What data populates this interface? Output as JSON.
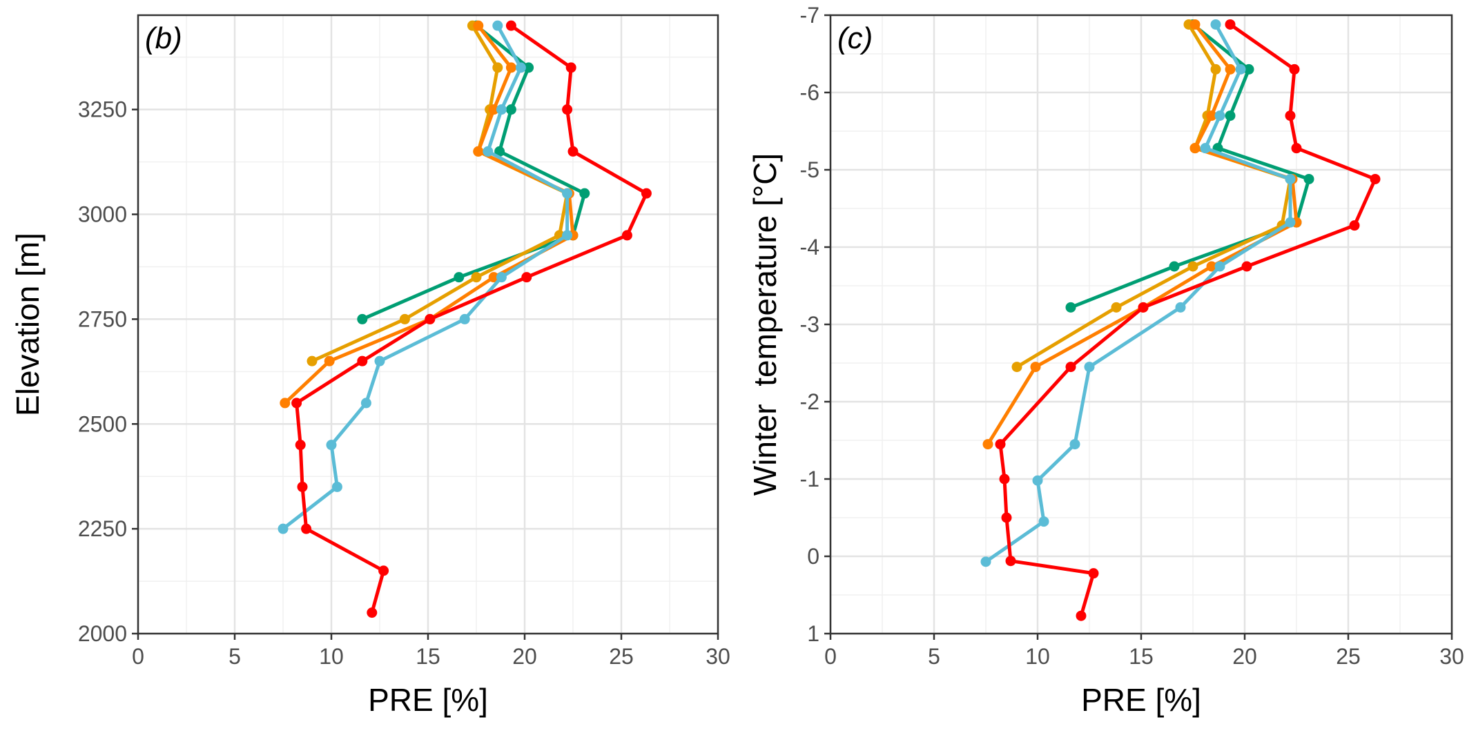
{
  "chart_data": [
    {
      "type": "line",
      "panel_label": "(b)",
      "xlabel": "PRE [%]",
      "ylabel": "Elevation [m]",
      "xlim": [
        0,
        30
      ],
      "ylim": [
        2000,
        3475
      ],
      "x_ticks": [
        "0",
        "5",
        "10",
        "15",
        "20",
        "25",
        "30"
      ],
      "y_ticks": [
        "2000",
        "2250",
        "2500",
        "2750",
        "3000",
        "3250"
      ],
      "grid": true,
      "legend": "none",
      "series": [
        {
          "color": "#009E73",
          "points": [
            [
              17.5,
              3450
            ],
            [
              20.2,
              3350
            ],
            [
              19.3,
              3250
            ],
            [
              18.7,
              3150
            ],
            [
              23.1,
              3050
            ],
            [
              22.5,
              2950
            ],
            [
              16.6,
              2850
            ],
            [
              11.6,
              2750
            ]
          ]
        },
        {
          "color": "#E69F00",
          "points": [
            [
              17.3,
              3450
            ],
            [
              18.6,
              3350
            ],
            [
              18.2,
              3250
            ],
            [
              17.6,
              3150
            ],
            [
              22.2,
              3050
            ],
            [
              21.8,
              2950
            ],
            [
              17.5,
              2850
            ],
            [
              13.8,
              2750
            ],
            [
              9.0,
              2650
            ]
          ]
        },
        {
          "color": "#FF7F00",
          "points": [
            [
              17.6,
              3450
            ],
            [
              19.3,
              3350
            ],
            [
              18.4,
              3250
            ],
            [
              17.6,
              3150
            ],
            [
              22.3,
              3050
            ],
            [
              22.5,
              2950
            ],
            [
              18.4,
              2850
            ],
            [
              15.1,
              2750
            ],
            [
              9.9,
              2650
            ],
            [
              7.6,
              2550
            ]
          ]
        },
        {
          "color": "#5BBCD6",
          "points": [
            [
              18.6,
              3450
            ],
            [
              19.8,
              3350
            ],
            [
              18.8,
              3250
            ],
            [
              18.1,
              3150
            ],
            [
              22.2,
              3050
            ],
            [
              22.2,
              2950
            ],
            [
              18.8,
              2850
            ],
            [
              16.9,
              2750
            ],
            [
              12.5,
              2650
            ],
            [
              11.8,
              2550
            ],
            [
              10.0,
              2450
            ],
            [
              10.3,
              2350
            ],
            [
              7.5,
              2250
            ]
          ]
        },
        {
          "color": "#FF0000",
          "points": [
            [
              19.3,
              3450
            ],
            [
              22.4,
              3350
            ],
            [
              22.2,
              3250
            ],
            [
              22.5,
              3150
            ],
            [
              26.3,
              3050
            ],
            [
              25.3,
              2950
            ],
            [
              20.1,
              2850
            ],
            [
              15.1,
              2750
            ],
            [
              11.6,
              2650
            ],
            [
              8.2,
              2550
            ],
            [
              8.4,
              2450
            ],
            [
              8.5,
              2350
            ],
            [
              8.7,
              2250
            ],
            [
              12.7,
              2150
            ],
            [
              12.1,
              2050
            ]
          ]
        }
      ]
    },
    {
      "type": "line",
      "panel_label": "(c)",
      "xlabel": "PRE [%]",
      "ylabel": "Winter  temperature [°C]",
      "xlim": [
        0,
        30
      ],
      "ylim": [
        1,
        -7
      ],
      "x_ticks": [
        "0",
        "5",
        "10",
        "15",
        "20",
        "25",
        "30"
      ],
      "y_ticks": [
        "1",
        "0",
        "-1",
        "-2",
        "-3",
        "-4",
        "-5",
        "-6",
        "-7"
      ],
      "grid": true,
      "legend": "none",
      "series": [
        {
          "color": "#009E73",
          "points": [
            [
              17.5,
              -6.88
            ],
            [
              20.2,
              -6.3
            ],
            [
              19.3,
              -5.7
            ],
            [
              18.7,
              -5.28
            ],
            [
              23.1,
              -4.88
            ],
            [
              22.5,
              -4.32
            ],
            [
              16.6,
              -3.75
            ],
            [
              11.6,
              -3.22
            ]
          ]
        },
        {
          "color": "#E69F00",
          "points": [
            [
              17.3,
              -6.88
            ],
            [
              18.6,
              -6.3
            ],
            [
              18.2,
              -5.7
            ],
            [
              17.6,
              -5.28
            ],
            [
              22.2,
              -4.88
            ],
            [
              21.8,
              -4.28
            ],
            [
              17.5,
              -3.75
            ],
            [
              13.8,
              -3.22
            ],
            [
              9.0,
              -2.45
            ]
          ]
        },
        {
          "color": "#FF7F00",
          "points": [
            [
              17.6,
              -6.88
            ],
            [
              19.3,
              -6.3
            ],
            [
              18.4,
              -5.7
            ],
            [
              17.6,
              -5.28
            ],
            [
              22.3,
              -4.88
            ],
            [
              22.5,
              -4.32
            ],
            [
              18.4,
              -3.75
            ],
            [
              15.1,
              -3.22
            ],
            [
              9.9,
              -2.45
            ],
            [
              7.6,
              -1.45
            ]
          ]
        },
        {
          "color": "#5BBCD6",
          "points": [
            [
              18.6,
              -6.88
            ],
            [
              19.8,
              -6.3
            ],
            [
              18.8,
              -5.7
            ],
            [
              18.1,
              -5.28
            ],
            [
              22.2,
              -4.88
            ],
            [
              22.2,
              -4.32
            ],
            [
              18.8,
              -3.75
            ],
            [
              16.9,
              -3.22
            ],
            [
              12.5,
              -2.45
            ],
            [
              11.8,
              -1.45
            ],
            [
              10.0,
              -0.98
            ],
            [
              10.3,
              -0.45
            ],
            [
              7.5,
              0.07
            ]
          ]
        },
        {
          "color": "#FF0000",
          "points": [
            [
              19.3,
              -6.88
            ],
            [
              22.4,
              -6.3
            ],
            [
              22.2,
              -5.7
            ],
            [
              22.5,
              -5.28
            ],
            [
              26.3,
              -4.88
            ],
            [
              25.3,
              -4.28
            ],
            [
              20.1,
              -3.75
            ],
            [
              15.1,
              -3.22
            ],
            [
              11.6,
              -2.45
            ],
            [
              8.2,
              -1.45
            ],
            [
              8.4,
              -1.0
            ],
            [
              8.5,
              -0.5
            ],
            [
              8.7,
              0.06
            ],
            [
              12.7,
              0.22
            ],
            [
              12.1,
              0.77
            ]
          ]
        }
      ]
    }
  ]
}
